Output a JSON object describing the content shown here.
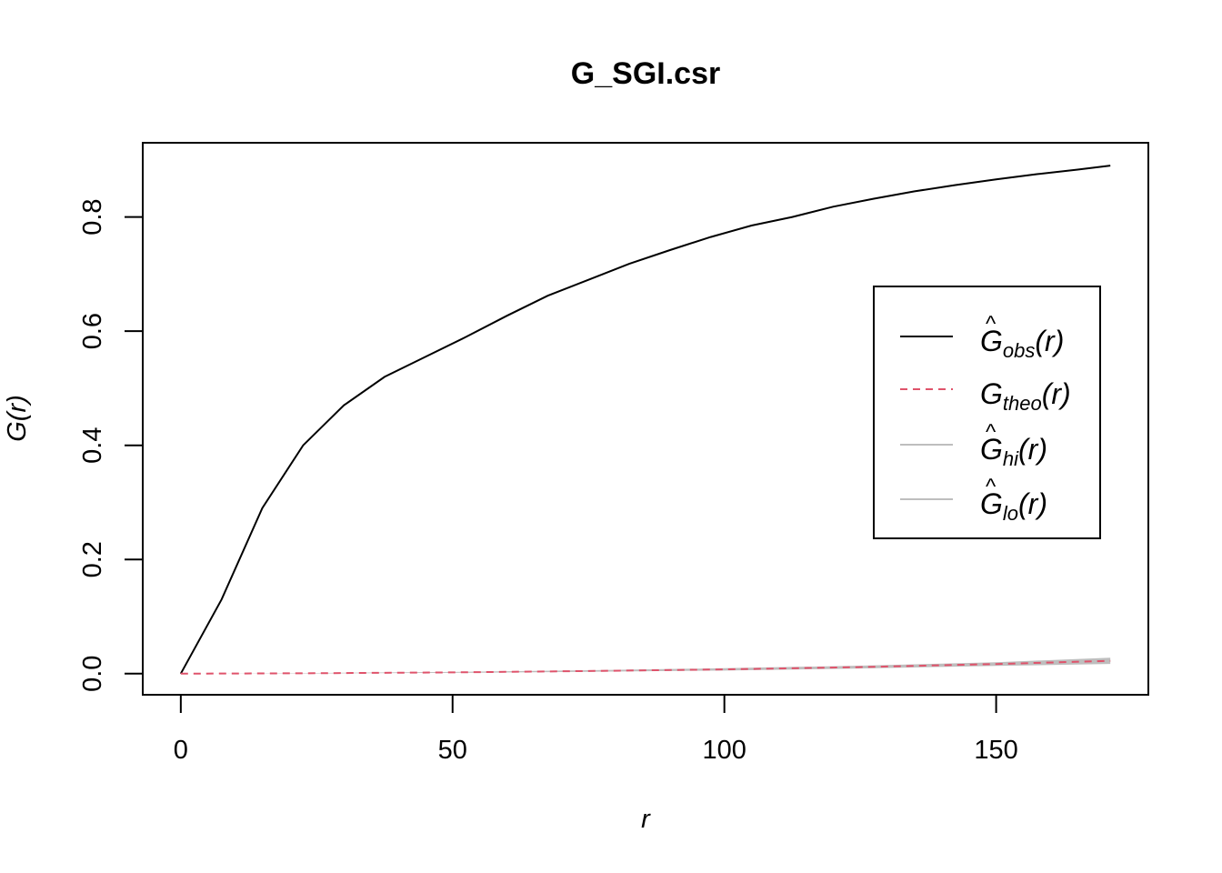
{
  "chart_data": {
    "type": "line",
    "title": "G_SGI.csr",
    "xlabel": "r",
    "ylabel": "G(r)",
    "xlim": [
      -7,
      178
    ],
    "ylim": [
      -0.037,
      0.93
    ],
    "x_ticks": [
      0,
      50,
      100,
      150
    ],
    "x_tick_labels": [
      "0",
      "50",
      "100",
      "150"
    ],
    "y_ticks": [
      0.0,
      0.2,
      0.4,
      0.6,
      0.8
    ],
    "y_tick_labels": [
      "0.0",
      "0.2",
      "0.4",
      "0.6",
      "0.8"
    ],
    "grid": false,
    "legend_position": "right",
    "envelope": {
      "x": [
        0,
        25,
        50,
        75,
        100,
        125,
        150,
        171
      ],
      "hi": [
        0,
        0.0012,
        0.003,
        0.006,
        0.0095,
        0.014,
        0.02,
        0.028
      ],
      "lo": [
        0,
        0.0004,
        0.0014,
        0.0032,
        0.0055,
        0.009,
        0.0135,
        0.017
      ],
      "color": "#bebebe"
    },
    "series": [
      {
        "key": "obs",
        "name": "obs",
        "legend_symbol": "G",
        "legend_hat": true,
        "color": "#000000",
        "dash": "solid",
        "x": [
          0,
          7.5,
          15,
          22.5,
          30,
          37.5,
          45,
          52.5,
          60,
          67.5,
          75,
          82.5,
          90,
          97.5,
          105,
          112.5,
          120,
          127.5,
          135,
          142.5,
          150,
          157.5,
          165,
          171
        ],
        "y": [
          0,
          0.13,
          0.29,
          0.4,
          0.47,
          0.52,
          0.555,
          0.59,
          0.627,
          0.662,
          0.69,
          0.718,
          0.742,
          0.765,
          0.785,
          0.8,
          0.818,
          0.832,
          0.845,
          0.856,
          0.866,
          0.875,
          0.883,
          0.89
        ]
      },
      {
        "key": "theo",
        "name": "theo",
        "legend_symbol": "G",
        "legend_hat": false,
        "color": "#df536b",
        "dash": "dashed",
        "x": [
          0,
          25,
          50,
          75,
          100,
          125,
          150,
          171
        ],
        "y": [
          0,
          0.0008,
          0.0022,
          0.0046,
          0.0075,
          0.0115,
          0.0168,
          0.0225
        ]
      },
      {
        "key": "hi",
        "name": "hi",
        "legend_symbol": "G",
        "legend_hat": true,
        "color": "#bebebe",
        "dash": "solid"
      },
      {
        "key": "lo",
        "name": "lo",
        "legend_symbol": "G",
        "legend_hat": true,
        "color": "#bebebe",
        "dash": "solid"
      }
    ],
    "legend_argument": "(r)"
  }
}
